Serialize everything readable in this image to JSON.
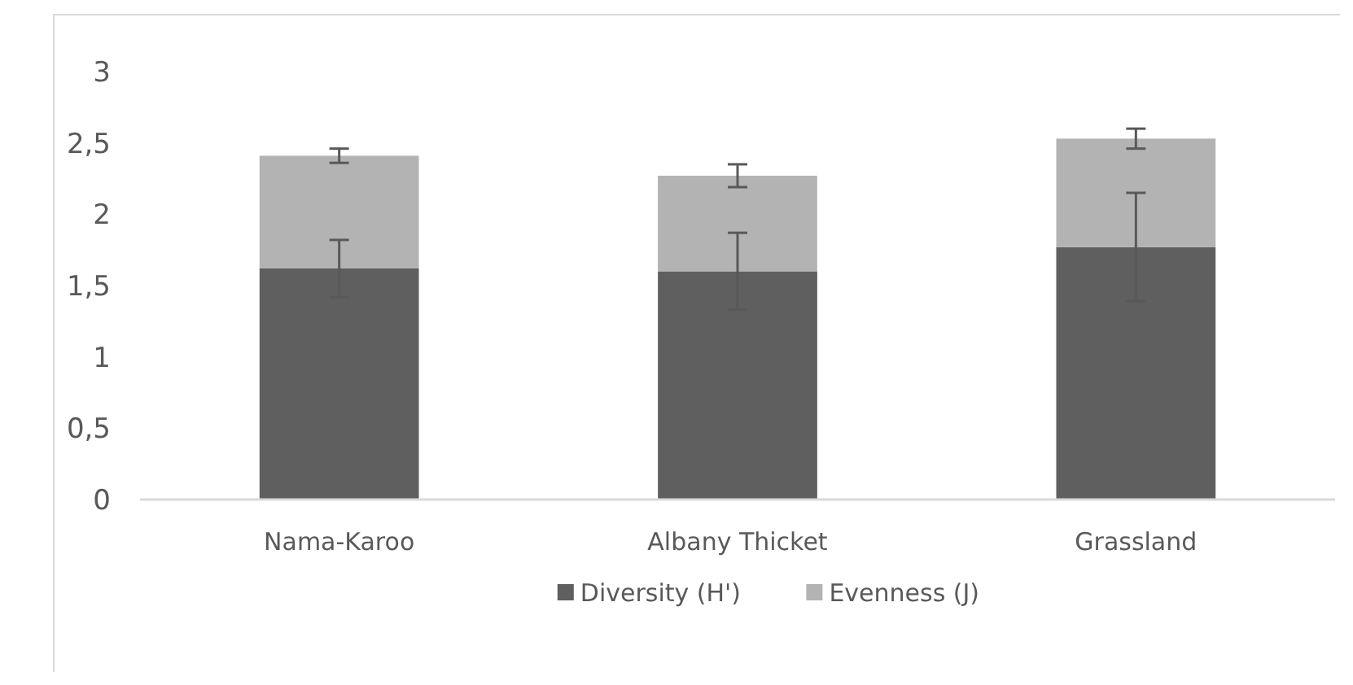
{
  "chart_data": {
    "type": "bar",
    "stacked": true,
    "categories": [
      "Nama-Karoo",
      "Albany Thicket",
      "Grassland"
    ],
    "series": [
      {
        "name": "Diversity (H')",
        "color": "#5f5f5f",
        "values": [
          1.62,
          1.6,
          1.77
        ],
        "errors": [
          0.2,
          0.27,
          0.38
        ]
      },
      {
        "name": "Evenness (J)",
        "color": "#b3b3b3",
        "values": [
          0.79,
          0.67,
          0.76
        ],
        "errors": [
          0.05,
          0.08,
          0.07
        ]
      }
    ],
    "ylim": [
      0,
      3
    ],
    "yticks": [
      {
        "value": 0,
        "label": "0"
      },
      {
        "value": 0.5,
        "label": "0,5"
      },
      {
        "value": 1,
        "label": "1"
      },
      {
        "value": 1.5,
        "label": "1,5"
      },
      {
        "value": 2,
        "label": "2"
      },
      {
        "value": 2.5,
        "label": "2,5"
      },
      {
        "value": 3,
        "label": "3"
      }
    ],
    "grid": false,
    "legend": "bottom"
  }
}
